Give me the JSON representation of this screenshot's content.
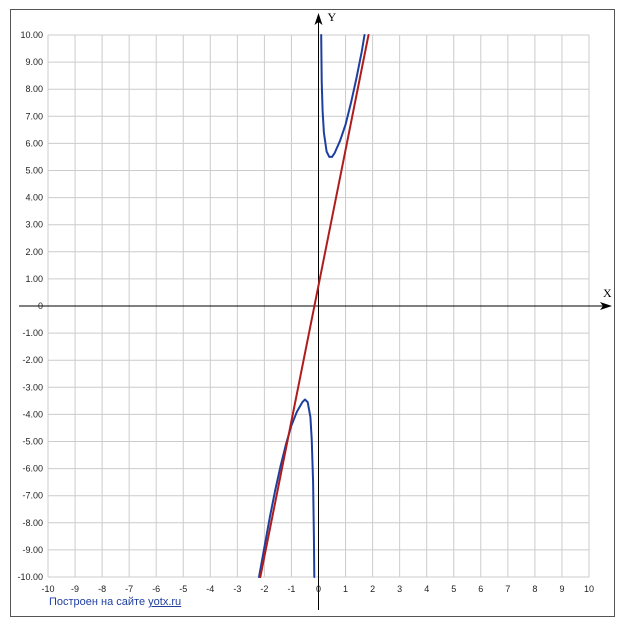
{
  "chart_data": {
    "type": "line",
    "title": "",
    "xlabel": "X",
    "ylabel": "Y",
    "xlim": [
      -10,
      10
    ],
    "ylim": [
      -10,
      10
    ],
    "grid": true,
    "x_ticks": [
      "-10",
      "-9",
      "-8",
      "-7",
      "-6",
      "-5",
      "-4",
      "-3",
      "-2",
      "-1",
      "0",
      "1",
      "2",
      "3",
      "4",
      "5",
      "6",
      "7",
      "8",
      "9",
      "10"
    ],
    "y_ticks": [
      "10.00",
      "9.00",
      "8.00",
      "7.00",
      "6.00",
      "5.00",
      "4.00",
      "3.00",
      "2.00",
      "1.00",
      "0",
      "-1.00",
      "-2.00",
      "-3.00",
      "-4.00",
      "-5.00",
      "-6.00",
      "-7.00",
      "-8.00",
      "-9.00",
      "-10.00"
    ],
    "series": [
      {
        "color": "#1f3f9f",
        "points": [
          [
            -2.2,
            -10.0
          ],
          [
            -2.0,
            -8.9
          ],
          [
            -1.8,
            -7.8
          ],
          [
            -1.6,
            -6.8
          ],
          [
            -1.4,
            -5.9
          ],
          [
            -1.2,
            -5.1
          ],
          [
            -1.0,
            -4.4
          ],
          [
            -0.8,
            -3.9
          ],
          [
            -0.6,
            -3.55
          ],
          [
            -0.5,
            -3.45
          ],
          [
            -0.4,
            -3.55
          ],
          [
            -0.3,
            -4.1
          ],
          [
            -0.25,
            -4.9
          ],
          [
            -0.2,
            -6.5
          ],
          [
            -0.17,
            -8.5
          ],
          [
            -0.155,
            -10.0
          ]
        ]
      },
      {
        "color": "#1f3f9f",
        "points": [
          [
            0.1,
            10.0
          ],
          [
            0.12,
            8.3
          ],
          [
            0.15,
            7.2
          ],
          [
            0.2,
            6.4
          ],
          [
            0.3,
            5.7
          ],
          [
            0.4,
            5.5
          ],
          [
            0.5,
            5.5
          ],
          [
            0.6,
            5.65
          ],
          [
            0.8,
            6.1
          ],
          [
            1.0,
            6.7
          ],
          [
            1.2,
            7.5
          ],
          [
            1.4,
            8.4
          ],
          [
            1.6,
            9.4
          ],
          [
            1.7,
            10.0
          ]
        ]
      },
      {
        "color": "#b01c1c",
        "points": [
          [
            -2.15,
            -10.0
          ],
          [
            1.85,
            10.0
          ]
        ]
      }
    ]
  },
  "credit": {
    "text": "Построен на сайте",
    "link": "yotx.ru"
  }
}
